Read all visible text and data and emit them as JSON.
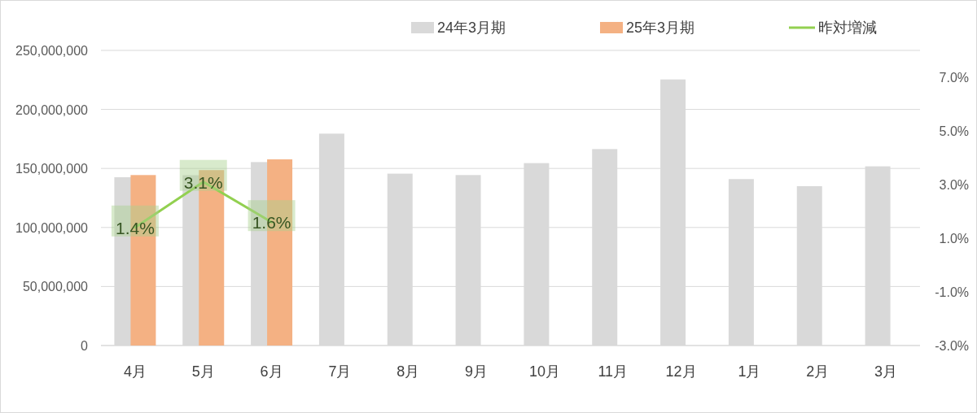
{
  "chart_data": {
    "type": "bar",
    "categories": [
      "4月",
      "5月",
      "6月",
      "7月",
      "8月",
      "9月",
      "10月",
      "11月",
      "12月",
      "1月",
      "2月",
      "3月"
    ],
    "series": [
      {
        "name": "24年3月期",
        "color": "#d9d9d9",
        "values": [
          142600000,
          144300000,
          155400000,
          179500000,
          145600000,
          144400000,
          154500000,
          166400000,
          225400000,
          141000000,
          135000000,
          151800000
        ]
      },
      {
        "name": "25年3月期",
        "color": "#f4b183",
        "values": [
          144400000,
          148600000,
          157700000,
          null,
          null,
          null,
          null,
          null,
          null,
          null,
          null,
          null
        ]
      },
      {
        "name": "昨対増減",
        "type": "line",
        "axis": "y2",
        "color": "#92d050",
        "marker": "none",
        "values": [
          1.4,
          3.1,
          1.6,
          null,
          null,
          null,
          null,
          null,
          null,
          null,
          null,
          null
        ],
        "value_labels": [
          "1.4%",
          "3.1%",
          "1.6%",
          null,
          null,
          null,
          null,
          null,
          null,
          null,
          null,
          null
        ]
      }
    ],
    "ylim": [
      0,
      250000000
    ],
    "yticks": [
      {
        "value": 0,
        "label": "0"
      },
      {
        "value": 50000000,
        "label": "50,000,000"
      },
      {
        "value": 100000000,
        "label": "100,000,000"
      },
      {
        "value": 150000000,
        "label": "150,000,000"
      },
      {
        "value": 200000000,
        "label": "200,000,000"
      },
      {
        "value": 250000000,
        "label": "250,000,000"
      }
    ],
    "y2lim": [
      -3,
      8
    ],
    "y2ticks": [
      {
        "value": -3,
        "label": "-3.0%"
      },
      {
        "value": -1,
        "label": "-1.0%"
      },
      {
        "value": 1,
        "label": "1.0%"
      },
      {
        "value": 3,
        "label": "3.0%"
      },
      {
        "value": 5,
        "label": "5.0%"
      },
      {
        "value": 7,
        "label": "7.0%"
      }
    ],
    "grid": "y",
    "legend": "top"
  }
}
